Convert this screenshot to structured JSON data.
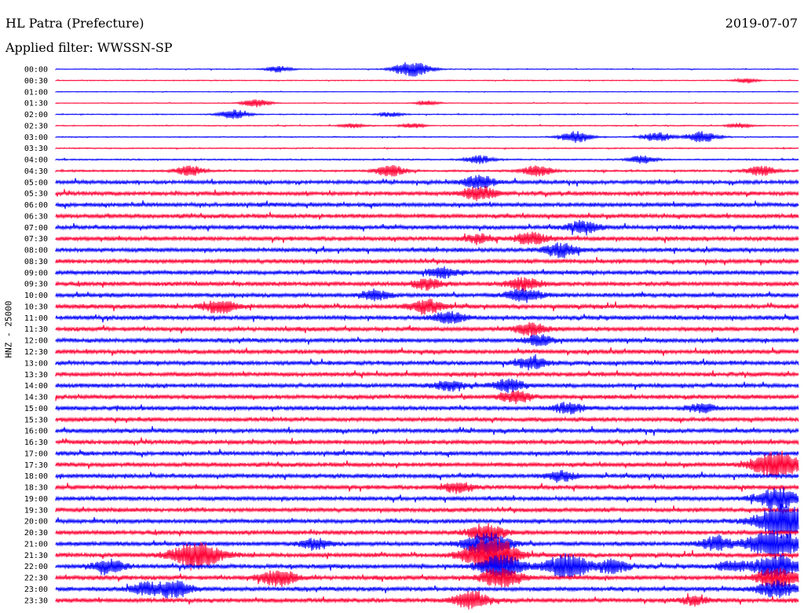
{
  "header": {
    "station": "HL Patra (Prefecture)",
    "date": "2019-07-07",
    "filter": "Applied filter: WWSSN-SP"
  },
  "chart_data": {
    "type": "line",
    "title": "HL Patra (Prefecture)",
    "subtitle": "Applied filter: WWSSN-SP",
    "ylabel": "HNZ - 25000",
    "xlabel": "",
    "grid": false,
    "colors": [
      "#0000ff",
      "#ff0033"
    ],
    "categories": [
      "00:00",
      "00:30",
      "01:00",
      "01:30",
      "02:00",
      "02:30",
      "03:00",
      "03:30",
      "04:00",
      "04:30",
      "05:00",
      "05:30",
      "06:00",
      "06:30",
      "07:00",
      "07:30",
      "08:00",
      "08:30",
      "09:00",
      "09:30",
      "10:00",
      "10:30",
      "11:00",
      "11:30",
      "12:00",
      "12:30",
      "13:00",
      "13:30",
      "14:00",
      "14:30",
      "15:00",
      "15:30",
      "16:00",
      "16:30",
      "17:00",
      "17:30",
      "18:00",
      "18:30",
      "19:00",
      "19:30",
      "20:00",
      "20:30",
      "21:00",
      "21:30",
      "22:00",
      "22:30",
      "23:00",
      "23:30"
    ],
    "noise_level": [
      0.6,
      0.6,
      0.5,
      0.5,
      0.7,
      0.7,
      0.8,
      0.8,
      1.0,
      1.4,
      2.6,
      2.8,
      3.0,
      3.0,
      3.0,
      3.0,
      3.0,
      3.0,
      3.0,
      3.0,
      3.0,
      3.0,
      3.0,
      3.0,
      3.0,
      3.0,
      3.0,
      3.0,
      3.0,
      3.0,
      3.0,
      3.0,
      3.0,
      3.0,
      3.0,
      3.0,
      3.0,
      3.0,
      3.0,
      3.0,
      3.0,
      3.0,
      3.0,
      3.0,
      3.0,
      3.0,
      3.0,
      3.0
    ],
    "events": [
      {
        "row": 0,
        "t": 0.3,
        "amp": 4
      },
      {
        "row": 0,
        "t": 0.48,
        "amp": 10
      },
      {
        "row": 1,
        "t": 0.93,
        "amp": 3
      },
      {
        "row": 3,
        "t": 0.27,
        "amp": 5
      },
      {
        "row": 3,
        "t": 0.5,
        "amp": 3
      },
      {
        "row": 4,
        "t": 0.24,
        "amp": 6
      },
      {
        "row": 4,
        "t": 0.45,
        "amp": 3
      },
      {
        "row": 5,
        "t": 0.4,
        "amp": 3
      },
      {
        "row": 5,
        "t": 0.48,
        "amp": 3
      },
      {
        "row": 5,
        "t": 0.92,
        "amp": 3
      },
      {
        "row": 6,
        "t": 0.7,
        "amp": 7
      },
      {
        "row": 6,
        "t": 0.81,
        "amp": 6
      },
      {
        "row": 6,
        "t": 0.87,
        "amp": 7
      },
      {
        "row": 8,
        "t": 0.57,
        "amp": 5
      },
      {
        "row": 8,
        "t": 0.79,
        "amp": 5
      },
      {
        "row": 9,
        "t": 0.18,
        "amp": 6
      },
      {
        "row": 9,
        "t": 0.45,
        "amp": 7
      },
      {
        "row": 9,
        "t": 0.65,
        "amp": 7
      },
      {
        "row": 9,
        "t": 0.95,
        "amp": 6
      },
      {
        "row": 10,
        "t": 0.57,
        "amp": 8
      },
      {
        "row": 11,
        "t": 0.57,
        "amp": 8
      },
      {
        "row": 14,
        "t": 0.71,
        "amp": 7
      },
      {
        "row": 15,
        "t": 0.57,
        "amp": 5
      },
      {
        "row": 15,
        "t": 0.64,
        "amp": 7
      },
      {
        "row": 16,
        "t": 0.68,
        "amp": 8
      },
      {
        "row": 18,
        "t": 0.52,
        "amp": 6
      },
      {
        "row": 19,
        "t": 0.5,
        "amp": 6
      },
      {
        "row": 19,
        "t": 0.63,
        "amp": 7
      },
      {
        "row": 20,
        "t": 0.43,
        "amp": 6
      },
      {
        "row": 20,
        "t": 0.63,
        "amp": 8
      },
      {
        "row": 21,
        "t": 0.22,
        "amp": 8
      },
      {
        "row": 21,
        "t": 0.5,
        "amp": 8
      },
      {
        "row": 22,
        "t": 0.53,
        "amp": 7
      },
      {
        "row": 23,
        "t": 0.64,
        "amp": 7
      },
      {
        "row": 24,
        "t": 0.65,
        "amp": 6
      },
      {
        "row": 26,
        "t": 0.64,
        "amp": 7
      },
      {
        "row": 28,
        "t": 0.53,
        "amp": 6
      },
      {
        "row": 28,
        "t": 0.61,
        "amp": 7
      },
      {
        "row": 29,
        "t": 0.62,
        "amp": 7
      },
      {
        "row": 30,
        "t": 0.69,
        "amp": 6
      },
      {
        "row": 30,
        "t": 0.87,
        "amp": 5
      },
      {
        "row": 35,
        "t": 0.97,
        "amp": 16
      },
      {
        "row": 36,
        "t": 0.68,
        "amp": 6
      },
      {
        "row": 37,
        "t": 0.54,
        "amp": 6
      },
      {
        "row": 38,
        "t": 0.97,
        "amp": 12
      },
      {
        "row": 40,
        "t": 0.97,
        "amp": 15
      },
      {
        "row": 40,
        "t": 0.99,
        "amp": 9
      },
      {
        "row": 41,
        "t": 0.58,
        "amp": 10
      },
      {
        "row": 42,
        "t": 0.35,
        "amp": 6
      },
      {
        "row": 42,
        "t": 0.58,
        "amp": 14
      },
      {
        "row": 42,
        "t": 0.89,
        "amp": 8
      },
      {
        "row": 42,
        "t": 0.95,
        "amp": 10
      },
      {
        "row": 42,
        "t": 0.98,
        "amp": 12
      },
      {
        "row": 43,
        "t": 0.19,
        "amp": 16
      },
      {
        "row": 43,
        "t": 0.58,
        "amp": 16
      },
      {
        "row": 43,
        "t": 0.6,
        "amp": 10
      },
      {
        "row": 44,
        "t": 0.07,
        "amp": 8
      },
      {
        "row": 44,
        "t": 0.6,
        "amp": 14
      },
      {
        "row": 44,
        "t": 0.68,
        "amp": 10
      },
      {
        "row": 44,
        "t": 0.7,
        "amp": 8
      },
      {
        "row": 44,
        "t": 0.75,
        "amp": 8
      },
      {
        "row": 44,
        "t": 0.91,
        "amp": 6
      },
      {
        "row": 44,
        "t": 0.97,
        "amp": 14
      },
      {
        "row": 45,
        "t": 0.3,
        "amp": 10
      },
      {
        "row": 45,
        "t": 0.6,
        "amp": 12
      },
      {
        "row": 45,
        "t": 0.97,
        "amp": 12
      },
      {
        "row": 46,
        "t": 0.12,
        "amp": 7
      },
      {
        "row": 46,
        "t": 0.16,
        "amp": 10
      },
      {
        "row": 46,
        "t": 0.97,
        "amp": 10
      },
      {
        "row": 47,
        "t": 0.56,
        "amp": 10
      },
      {
        "row": 47,
        "t": 0.86,
        "amp": 5
      }
    ]
  }
}
